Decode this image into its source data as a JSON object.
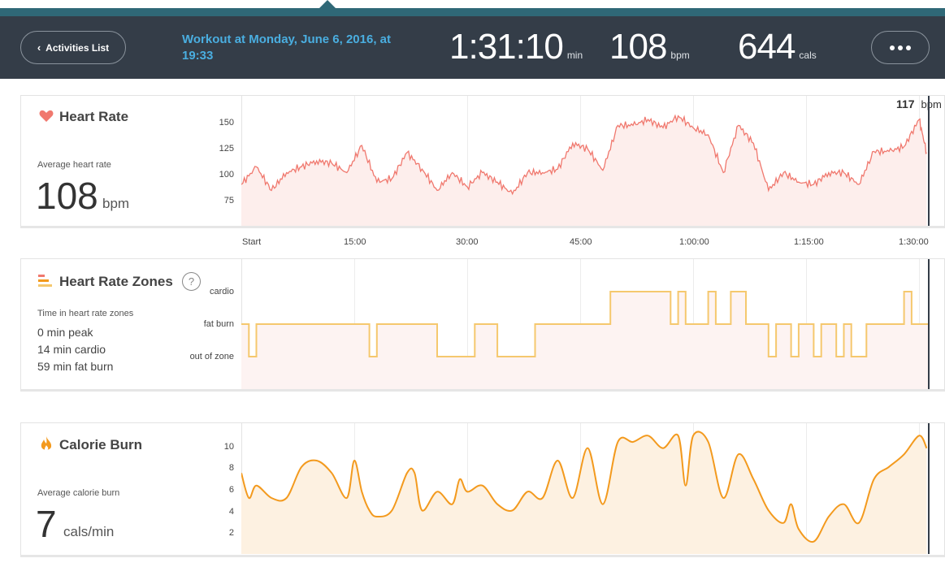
{
  "header": {
    "back_label": "Activities List",
    "workout_title": "Workout at Monday, June 6, 2016, at 19:33",
    "duration": "1:31:10",
    "duration_unit": "min",
    "heart_rate": "108",
    "heart_rate_unit": "bpm",
    "calories": "644",
    "calories_unit": "cals",
    "more_icon": "ellipsis-icon"
  },
  "x_ticks": [
    "Start",
    "15:00",
    "30:00",
    "45:00",
    "1:00:00",
    "1:15:00",
    "1:30:00"
  ],
  "heart_rate": {
    "title": "Heart Rate",
    "icon": "heart-icon",
    "avg_label": "Average heart rate",
    "avg_value": "108",
    "avg_unit": "bpm",
    "current_value": "117",
    "current_unit": "bpm",
    "color": "#f0786e",
    "y_ticks": [
      "150",
      "125",
      "100",
      "75"
    ]
  },
  "zones": {
    "title": "Heart Rate Zones",
    "icon": "bars-icon",
    "help_label": "?",
    "time_label": "Time in heart rate zones",
    "lines": [
      "0 min peak",
      "14 min cardio",
      "59 min fat burn"
    ],
    "levels": [
      "cardio",
      "fat burn",
      "out of zone"
    ],
    "color": "#f5c86e"
  },
  "calories": {
    "title": "Calorie Burn",
    "icon": "flame-icon",
    "avg_label": "Average calorie burn",
    "avg_value": "7",
    "avg_unit": "cals/min",
    "color": "#f39a1e",
    "y_ticks": [
      "10",
      "8",
      "6",
      "4",
      "2"
    ]
  },
  "chart_data": [
    {
      "type": "area",
      "title": "Heart Rate",
      "ylabel": "bpm",
      "ylim": [
        55,
        165
      ],
      "x_minutes": [
        0,
        2,
        4,
        6,
        8,
        10,
        12,
        14,
        16,
        18,
        20,
        22,
        24,
        26,
        28,
        30,
        32,
        34,
        36,
        38,
        40,
        42,
        44,
        46,
        48,
        50,
        52,
        54,
        56,
        58,
        60,
        62,
        64,
        66,
        68,
        70,
        72,
        74,
        76,
        78,
        80,
        82,
        84,
        86,
        88,
        90,
        91
      ],
      "values": [
        90,
        105,
        85,
        100,
        105,
        110,
        108,
        100,
        123,
        92,
        95,
        117,
        103,
        85,
        100,
        88,
        100,
        92,
        82,
        100,
        100,
        103,
        125,
        120,
        102,
        140,
        140,
        145,
        138,
        148,
        138,
        132,
        100,
        140,
        125,
        85,
        100,
        92,
        90,
        100,
        100,
        90,
        118,
        118,
        122,
        145,
        117
      ],
      "grid": true
    },
    {
      "type": "line",
      "title": "Heart Rate Zones",
      "categories": [
        "out of zone",
        "fat burn",
        "cardio"
      ],
      "x_minutes": [
        0,
        1,
        2,
        17,
        18,
        26,
        31,
        34,
        39,
        49,
        57,
        58,
        59,
        62,
        63,
        65,
        67,
        70,
        71,
        73,
        74,
        76,
        77,
        79,
        80,
        81,
        83,
        88,
        89,
        90,
        91
      ],
      "levels": [
        1,
        0,
        1,
        0,
        1,
        0,
        1,
        0,
        1,
        2,
        1,
        2,
        1,
        2,
        1,
        2,
        1,
        0,
        1,
        0,
        1,
        0,
        1,
        0,
        1,
        0,
        1,
        2,
        1,
        1,
        1
      ]
    },
    {
      "type": "area",
      "title": "Calorie Burn",
      "ylabel": "cals/min",
      "ylim": [
        1,
        11.5
      ],
      "x_minutes": [
        0,
        1,
        2,
        4,
        6,
        8,
        10,
        12,
        14,
        15,
        16,
        17,
        18,
        20,
        22,
        23,
        24,
        26,
        28,
        29,
        30,
        32,
        34,
        36,
        38,
        40,
        42,
        44,
        46,
        48,
        50,
        52,
        54,
        56,
        58,
        59,
        60,
        62,
        64,
        66,
        68,
        70,
        72,
        73,
        74,
        76,
        78,
        80,
        82,
        84,
        86,
        88,
        90,
        91
      ],
      "values": [
        7.5,
        5.5,
        6.5,
        5.5,
        5.5,
        8,
        8.5,
        7.5,
        5.5,
        8.5,
        6,
        4.5,
        4,
        4.5,
        7.5,
        7.5,
        4.5,
        6,
        5,
        7,
        6,
        6.5,
        5,
        4.5,
        6,
        5.5,
        8.5,
        5.5,
        9.5,
        5,
        10,
        10,
        10.5,
        9.5,
        10.5,
        6.5,
        10.5,
        10,
        5.5,
        9,
        7,
        4.5,
        3.5,
        5,
        3,
        2,
        4,
        5,
        3.5,
        7,
        8,
        9,
        10.5,
        9.5
      ],
      "grid": true
    }
  ]
}
